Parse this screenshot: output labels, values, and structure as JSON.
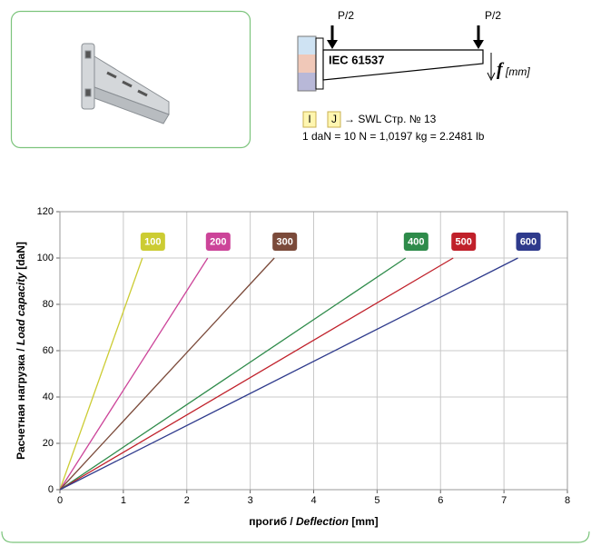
{
  "diagram": {
    "loads": [
      "P/2",
      "P/2"
    ],
    "standard": "IEC 61537",
    "deflection_symbol": "f",
    "deflection_unit": "[mm]",
    "tags": [
      "I",
      "J"
    ],
    "reference": "→ SWL Стр. № 13",
    "conversion": "1 daN = 10 N = 1,0197 kg = 2.2481 lb"
  },
  "chart_data": {
    "type": "line",
    "xlabel": [
      "прогиб / ",
      "Deflection",
      " [mm]"
    ],
    "ylabel": [
      "Расчетная нагрузка / ",
      "Load capacity",
      " [daN]"
    ],
    "xlim": [
      0,
      8
    ],
    "xticks": [
      0,
      1,
      2,
      3,
      4,
      5,
      6,
      7,
      8
    ],
    "ylim": [
      0,
      120
    ],
    "yticks": [
      0,
      20,
      40,
      60,
      80,
      100,
      120
    ],
    "grid": true,
    "series": [
      {
        "name": "100",
        "color": "#cccc33",
        "x": [
          0,
          1.3
        ],
        "values": [
          0,
          100
        ]
      },
      {
        "name": "200",
        "color": "#cc4499",
        "x": [
          0,
          2.33
        ],
        "values": [
          0,
          100
        ]
      },
      {
        "name": "300",
        "color": "#7b4a3a",
        "x": [
          0,
          3.38
        ],
        "values": [
          0,
          100
        ]
      },
      {
        "name": "400",
        "color": "#2e8b4a",
        "x": [
          0,
          5.45
        ],
        "values": [
          0,
          100
        ]
      },
      {
        "name": "500",
        "color": "#c0202a",
        "x": [
          0,
          6.2
        ],
        "values": [
          0,
          100
        ]
      },
      {
        "name": "600",
        "color": "#2e3a8c",
        "x": [
          0,
          7.22
        ],
        "values": [
          0,
          100
        ]
      }
    ]
  }
}
